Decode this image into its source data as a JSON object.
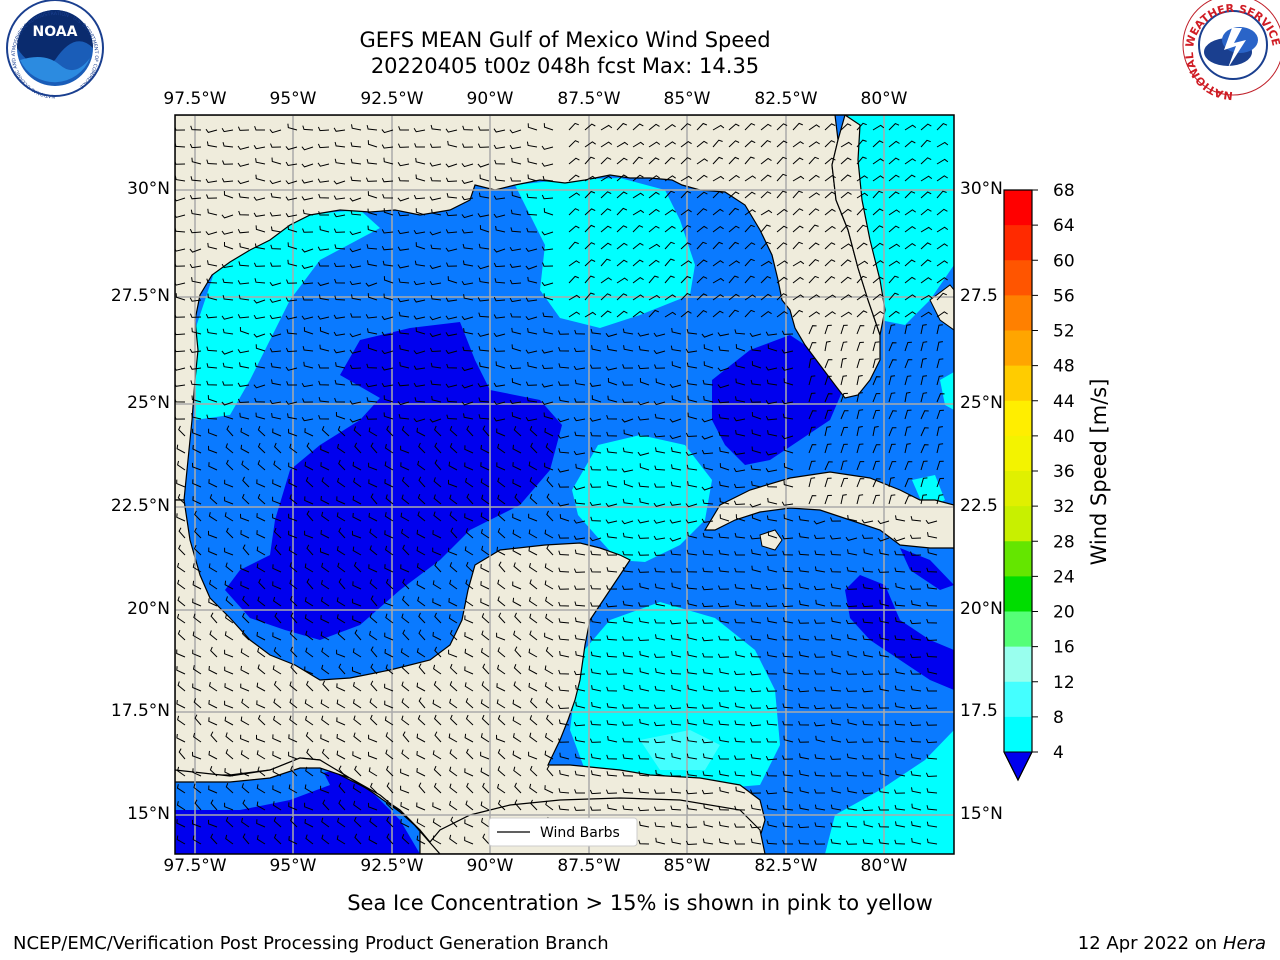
{
  "header": {
    "title_line1": "GEFS MEAN Gulf of Mexico Wind Speed",
    "title_line2": "20220405 t00z 048h fcst   Max: 14.35"
  },
  "logos": {
    "left": {
      "name": "noaa-logo",
      "text": "NOAA",
      "ring_text": "NATIONAL OCEANIC AND ATMOSPHERIC ADMINISTRATION · U.S. DEPARTMENT OF COMMERCE"
    },
    "right": {
      "name": "nws-logo",
      "ring_text": "NATIONAL WEATHER SERVICE"
    }
  },
  "map": {
    "lon_range": [
      -98,
      -78.2
    ],
    "lat_range": [
      14,
      31.8
    ],
    "lon_ticks": [
      "97.5°W",
      "95°W",
      "92.5°W",
      "90°W",
      "87.5°W",
      "85°W",
      "82.5°W",
      "80°W"
    ],
    "lat_ticks_left": [
      "30°N",
      "27.5°N",
      "25°N",
      "22.5°N",
      "20°N",
      "17.5°N",
      "15°N"
    ],
    "lat_ticks_right": [
      "30°N",
      "27.5",
      "25°N",
      "22.5",
      "20°N",
      "17.5",
      "15°N"
    ],
    "legend_label": "Wind Barbs",
    "gridlines": true
  },
  "colorbar": {
    "label": "Wind Speed [m/s]",
    "ticks": [
      "68",
      "64",
      "60",
      "56",
      "52",
      "48",
      "44",
      "40",
      "36",
      "32",
      "28",
      "24",
      "20",
      "16",
      "12",
      "8",
      "4"
    ],
    "colors": [
      "#ff0000",
      "#ff2a00",
      "#ff5500",
      "#ff8000",
      "#ffa500",
      "#ffcc00",
      "#ffee00",
      "#f3f300",
      "#e0f000",
      "#c8f000",
      "#64e600",
      "#00dd00",
      "#55ff77",
      "#99ffee",
      "#44ffff",
      "#00ffff",
      "#0080ff"
    ],
    "extend_color": "#0000ee"
  },
  "fill_colors": {
    "land": "#efecdc",
    "band_4_8": "#0a7aff",
    "band_lt4": "#0000ee",
    "band_8_12": "#00ffff",
    "band_12_16": "#44ffff"
  },
  "footer": {
    "ice_note": "Sea Ice Concentration > 15% is shown in pink to yellow",
    "credit": "NCEP/EMC/Verification Post Processing Product Generation Branch",
    "date": "12 Apr 2022 on",
    "host": "Hera"
  }
}
